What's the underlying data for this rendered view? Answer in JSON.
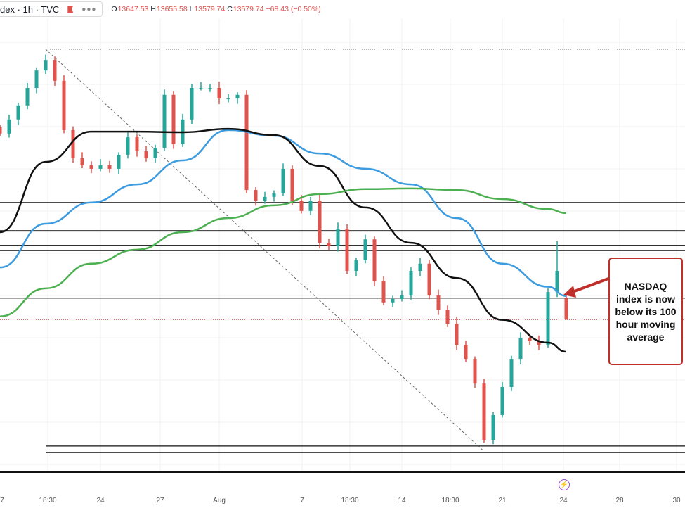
{
  "header": {
    "symbol": "dex · 1h · TVC",
    "more_icon": "ellipsis-icon",
    "open_label": "O",
    "open": "13647.53",
    "high_label": "H",
    "high": "13655.58",
    "low_label": "L",
    "low": "13579.74",
    "close_label": "C",
    "close": "13579.74",
    "change": "−68.43 (−0.50%)"
  },
  "annotation": {
    "text": "NASDAQ index is now below its 100 hour moving average"
  },
  "event_icon": "lightning-icon",
  "colors": {
    "up": "#26a69a",
    "down": "#e0524c",
    "ma_blue": "#3d9be0",
    "ma_black": "#111111",
    "ma_green": "#4caf50",
    "annotation": "#c0302a"
  },
  "chart_data": {
    "type": "candlestick",
    "x_tick_labels": [
      "7",
      "18:30",
      "24",
      "27",
      "Aug",
      "7",
      "18:30",
      "14",
      "18:30",
      "21",
      "24",
      "28",
      "30"
    ],
    "closes": [
      14176,
      14221,
      14266,
      14322,
      14378,
      14412,
      14345,
      14187,
      14097,
      14074,
      14063,
      14074,
      14063,
      14108,
      14164,
      14119,
      14097,
      14130,
      14300,
      14142,
      14221,
      14322,
      14322,
      14322,
      14288,
      14288,
      14300,
      13995,
      13961,
      13973,
      13984,
      14063,
      13961,
      13928,
      13961,
      13826,
      13815,
      13871,
      13736,
      13770,
      13837,
      13702,
      13635,
      13646,
      13657,
      13736,
      13759,
      13657,
      13612,
      13567,
      13499,
      13454,
      13375,
      13195,
      13274,
      13364,
      13454,
      13522,
      13511,
      13499,
      13668,
      13736,
      13580
    ],
    "spike_high": 13831,
    "last_bar": {
      "open": 13647.53,
      "high": 13655.58,
      "low": 13579.74,
      "close": 13579.74
    },
    "moving_averages": [
      {
        "color": "#3d9be0",
        "values": [
          13747,
          13887,
          13955,
          14013,
          14090,
          14187,
          14169,
          14112,
          14063,
          14013,
          13905,
          13759,
          13685
        ]
      },
      {
        "color": "#111111",
        "values": [
          13860,
          14085,
          14182,
          14182,
          14180,
          14191,
          14171,
          14072,
          13939,
          13826,
          13713,
          13579,
          13506
        ]
      },
      {
        "color": "#4caf50",
        "values": [
          13590,
          13680,
          13759,
          13804,
          13860,
          13905,
          13946,
          13982,
          13998,
          14000,
          13995,
          13966,
          13934
        ]
      }
    ],
    "horizontal_levels": [
      13955,
      13864,
      13817,
      13801,
      13648,
      13175,
      13154
    ],
    "current_price_line": 13579.74,
    "swing_high": 14446,
    "trendline": {
      "from": 14446,
      "to": 13160
    },
    "grid": true
  }
}
